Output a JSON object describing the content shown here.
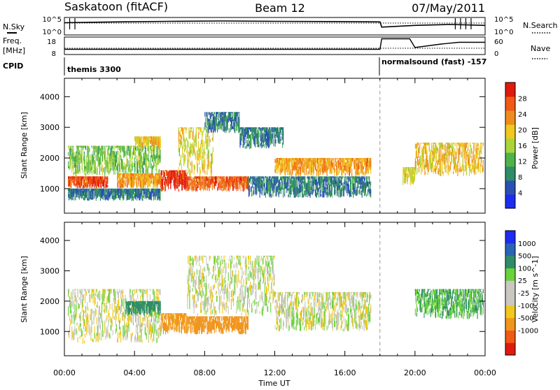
{
  "header": {
    "station": "Saskatoon (fitACF)",
    "beam": "Beam 12",
    "date": "07/May/2011"
  },
  "side_labels": {
    "nsky": "N.Sky",
    "nsearch": "N.Search",
    "freq": "Freq.",
    "mhz": "[MHz]",
    "nave": "Nave",
    "cpid": "CPID",
    "sky_hi": "10^5",
    "sky_lo": "10^0",
    "srch_hi": "10^5",
    "srch_lo": "10^0",
    "freq_hi": "18",
    "freq_lo": "8",
    "nave_hi": "60",
    "nave_lo": "0"
  },
  "cpid": [
    {
      "label": "themis 3300",
      "start_hour": 0.0
    },
    {
      "label": "normalsound (fast) -157",
      "start_hour": 18.0
    }
  ],
  "palette": {
    "power": [
      "#1e2cf0",
      "#2a50b4",
      "#2f8c68",
      "#4fb24a",
      "#a8d63a",
      "#f0c81e",
      "#f08c1e",
      "#f05a14",
      "#e01a0e"
    ],
    "velocity": [
      "#e01a0e",
      "#f05a14",
      "#f0961e",
      "#f0c81e",
      "#c8c8c0",
      "#c8c8c0",
      "#6ad23a",
      "#2f8c68",
      "#2a64b4",
      "#1e2cf0"
    ]
  },
  "chart_data": [
    {
      "type": "heatmap",
      "name": "power",
      "title": "",
      "xlabel": "",
      "ylabel": "Slant Range [km]",
      "xlim": [
        0,
        24
      ],
      "ylim": [
        200,
        4600
      ],
      "x_ticks": [],
      "y_ticks": [
        1000,
        2000,
        3000,
        4000
      ],
      "colorbar": {
        "label": "Power [dB]",
        "ticks": [
          "4",
          "8",
          "12",
          "16",
          "20",
          "24",
          "28"
        ],
        "range": [
          0,
          32
        ]
      },
      "echo_bands": [
        {
          "x_start": 0.2,
          "x_end": 2.5,
          "r_low": 1000,
          "r_high": 1400,
          "power": 28
        },
        {
          "x_start": 0.2,
          "x_end": 5.5,
          "r_low": 600,
          "r_high": 1000,
          "power": 8
        },
        {
          "x_start": 0.2,
          "x_end": 5.5,
          "r_low": 1400,
          "r_high": 2400,
          "power": 14
        },
        {
          "x_start": 3.0,
          "x_end": 5.5,
          "r_low": 1000,
          "r_high": 1500,
          "power": 22
        },
        {
          "x_start": 4.0,
          "x_end": 5.5,
          "r_low": 2300,
          "r_high": 2700,
          "power": 20
        },
        {
          "x_start": 5.5,
          "x_end": 7.0,
          "r_low": 900,
          "r_high": 1600,
          "power": 30
        },
        {
          "x_start": 7.0,
          "x_end": 10.5,
          "r_low": 900,
          "r_high": 1400,
          "power": 26
        },
        {
          "x_start": 6.5,
          "x_end": 8.5,
          "r_low": 1400,
          "r_high": 3000,
          "power": 18
        },
        {
          "x_start": 8.0,
          "x_end": 10.0,
          "r_low": 2800,
          "r_high": 3500,
          "power": 8
        },
        {
          "x_start": 10.0,
          "x_end": 12.5,
          "r_low": 2300,
          "r_high": 3000,
          "power": 8
        },
        {
          "x_start": 12.0,
          "x_end": 17.5,
          "r_low": 1400,
          "r_high": 2000,
          "power": 22
        },
        {
          "x_start": 10.5,
          "x_end": 17.5,
          "r_low": 700,
          "r_high": 1400,
          "power": 8
        },
        {
          "x_start": 19.3,
          "x_end": 20.0,
          "r_low": 1100,
          "r_high": 1700,
          "power": 18
        },
        {
          "x_start": 20.0,
          "x_end": 23.9,
          "r_low": 1400,
          "r_high": 2500,
          "power": 20
        }
      ]
    },
    {
      "type": "heatmap",
      "name": "velocity",
      "title": "",
      "xlabel": "Time UT",
      "ylabel": "Slant Range [km]",
      "xlim": [
        0,
        24
      ],
      "ylim": [
        200,
        4600
      ],
      "x_ticks": [
        "00:00",
        "04:00",
        "08:00",
        "12:00",
        "16:00",
        "20:00",
        "00:00"
      ],
      "y_ticks": [
        1000,
        2000,
        3000,
        4000
      ],
      "colorbar": {
        "label": "Velocity [m s^-1]",
        "ticks": [
          "1000",
          "500",
          "100",
          "25",
          "-25",
          "-100",
          "-500",
          "-1000"
        ]
      },
      "echo_bands": [
        {
          "x_start": 0.2,
          "x_end": 5.5,
          "r_low": 600,
          "r_high": 2400,
          "velocity": 0
        },
        {
          "x_start": 3.5,
          "x_end": 5.5,
          "r_low": 1500,
          "r_high": 2000,
          "velocity": 150
        },
        {
          "x_start": 5.5,
          "x_end": 7.0,
          "r_low": 900,
          "r_high": 1600,
          "velocity": -150
        },
        {
          "x_start": 7.0,
          "x_end": 10.5,
          "r_low": 900,
          "r_high": 1500,
          "velocity": -300
        },
        {
          "x_start": 7.0,
          "x_end": 12.0,
          "r_low": 1500,
          "r_high": 3500,
          "velocity": 0
        },
        {
          "x_start": 12.0,
          "x_end": 17.5,
          "r_low": 1000,
          "r_high": 2300,
          "velocity": 0
        },
        {
          "x_start": 20.0,
          "x_end": 23.9,
          "r_low": 1400,
          "r_high": 2400,
          "velocity": 100
        }
      ]
    },
    {
      "type": "line",
      "name": "nsky-nsearch",
      "x": [
        0,
        3,
        6,
        9,
        12,
        15,
        18,
        18.1,
        20,
        22,
        24
      ],
      "series": [
        {
          "name": "N.Sky",
          "values": [
            0.7,
            0.75,
            0.78,
            0.8,
            0.78,
            0.77,
            0.75,
            0.45,
            0.55,
            0.6,
            0.55
          ]
        }
      ],
      "ylim": [
        0,
        1
      ]
    },
    {
      "type": "line",
      "name": "freq-nave",
      "x": [
        0,
        4,
        8,
        12,
        16,
        18,
        18.1,
        19.7,
        20.0,
        21.5,
        22.5,
        24
      ],
      "series": [
        {
          "name": "Freq.",
          "values": [
            11,
            11,
            11,
            11,
            11,
            11,
            17,
            17,
            12,
            14,
            15,
            15
          ]
        }
      ],
      "ylim": [
        8,
        18
      ]
    }
  ]
}
